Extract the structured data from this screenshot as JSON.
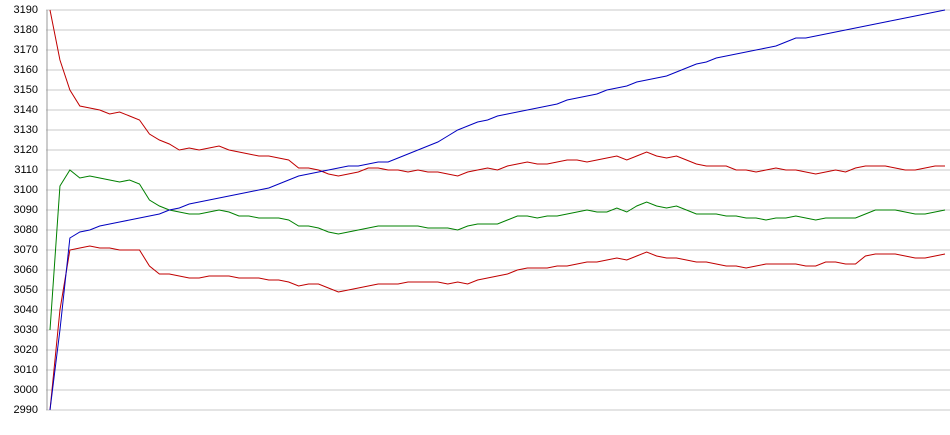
{
  "chart_data": {
    "type": "line",
    "ylim": [
      2990,
      3190
    ],
    "yticks": [
      2990,
      3000,
      3010,
      3020,
      3030,
      3040,
      3050,
      3060,
      3070,
      3080,
      3090,
      3100,
      3110,
      3120,
      3130,
      3140,
      3150,
      3160,
      3170,
      3180,
      3190
    ],
    "grid": true,
    "series": [
      {
        "color": "#c00000",
        "values": [
          3190,
          3165,
          3150,
          3142,
          3141,
          3140,
          3138,
          3139,
          3137,
          3135,
          3128,
          3125,
          3123,
          3120,
          3121,
          3120,
          3121,
          3122,
          3120,
          3119,
          3118,
          3117,
          3117,
          3116,
          3115,
          3111,
          3111,
          3110,
          3108,
          3107,
          3108,
          3109,
          3111,
          3111,
          3110,
          3110,
          3109,
          3110,
          3109,
          3109,
          3108,
          3107,
          3109,
          3110,
          3111,
          3110,
          3112,
          3113,
          3114,
          3113,
          3113,
          3114,
          3115,
          3115,
          3114,
          3115,
          3116,
          3117,
          3115,
          3117,
          3119,
          3117,
          3116,
          3117,
          3115,
          3113,
          3112,
          3112,
          3112,
          3110,
          3110,
          3109,
          3110,
          3111,
          3110,
          3110,
          3109,
          3108,
          3109,
          3110,
          3109,
          3111,
          3112,
          3112,
          3112,
          3111,
          3110,
          3110,
          3111,
          3112,
          3112
        ]
      },
      {
        "color": "#008000",
        "values": [
          3030,
          3102,
          3110,
          3106,
          3107,
          3106,
          3105,
          3104,
          3105,
          3103,
          3095,
          3092,
          3090,
          3089,
          3088,
          3088,
          3089,
          3090,
          3089,
          3087,
          3087,
          3086,
          3086,
          3086,
          3085,
          3082,
          3082,
          3081,
          3079,
          3078,
          3079,
          3080,
          3081,
          3082,
          3082,
          3082,
          3082,
          3082,
          3081,
          3081,
          3081,
          3080,
          3082,
          3083,
          3083,
          3083,
          3085,
          3087,
          3087,
          3086,
          3087,
          3087,
          3088,
          3089,
          3090,
          3089,
          3089,
          3091,
          3089,
          3092,
          3094,
          3092,
          3091,
          3092,
          3090,
          3088,
          3088,
          3088,
          3087,
          3087,
          3086,
          3086,
          3085,
          3086,
          3086,
          3087,
          3086,
          3085,
          3086,
          3086,
          3086,
          3086,
          3088,
          3090,
          3090,
          3090,
          3089,
          3088,
          3088,
          3089,
          3090
        ]
      },
      {
        "color": "#c00000",
        "values": [
          2990,
          3040,
          3070,
          3071,
          3072,
          3071,
          3071,
          3070,
          3070,
          3070,
          3062,
          3058,
          3058,
          3057,
          3056,
          3056,
          3057,
          3057,
          3057,
          3056,
          3056,
          3056,
          3055,
          3055,
          3054,
          3052,
          3053,
          3053,
          3051,
          3049,
          3050,
          3051,
          3052,
          3053,
          3053,
          3053,
          3054,
          3054,
          3054,
          3054,
          3053,
          3054,
          3053,
          3055,
          3056,
          3057,
          3058,
          3060,
          3061,
          3061,
          3061,
          3062,
          3062,
          3063,
          3064,
          3064,
          3065,
          3066,
          3065,
          3067,
          3069,
          3067,
          3066,
          3066,
          3065,
          3064,
          3064,
          3063,
          3062,
          3062,
          3061,
          3062,
          3063,
          3063,
          3063,
          3063,
          3062,
          3062,
          3064,
          3064,
          3063,
          3063,
          3067,
          3068,
          3068,
          3068,
          3067,
          3066,
          3066,
          3067,
          3068
        ]
      },
      {
        "color": "#0000c0",
        "values": [
          2990,
          3030,
          3076,
          3079,
          3080,
          3082,
          3083,
          3084,
          3085,
          3086,
          3087,
          3088,
          3090,
          3091,
          3093,
          3094,
          3095,
          3096,
          3097,
          3098,
          3099,
          3100,
          3101,
          3103,
          3105,
          3107,
          3108,
          3109,
          3110,
          3111,
          3112,
          3112,
          3113,
          3114,
          3114,
          3116,
          3118,
          3120,
          3122,
          3124,
          3127,
          3130,
          3132,
          3134,
          3135,
          3137,
          3138,
          3139,
          3140,
          3141,
          3142,
          3143,
          3145,
          3146,
          3147,
          3148,
          3150,
          3151,
          3152,
          3154,
          3155,
          3156,
          3157,
          3159,
          3161,
          3163,
          3164,
          3166,
          3167,
          3168,
          3169,
          3170,
          3171,
          3172,
          3174,
          3176,
          3176,
          3177,
          3178,
          3179,
          3180,
          3181,
          3182,
          3183,
          3184,
          3185,
          3186,
          3187,
          3188,
          3189,
          3190
        ]
      }
    ]
  }
}
